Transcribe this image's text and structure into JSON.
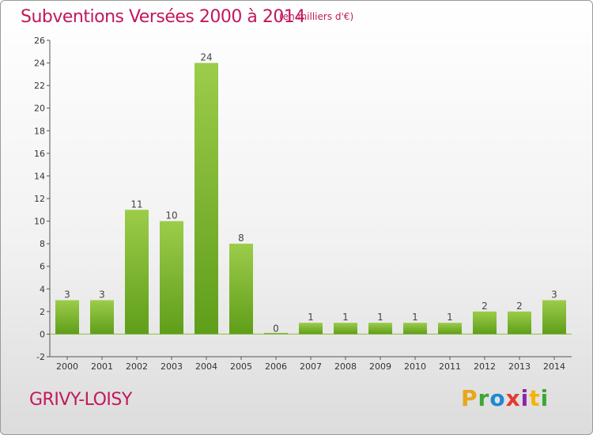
{
  "header": {
    "title": "Subventions Versées 2000 à 2014",
    "subtitle": "(en milliers d'€)"
  },
  "footer": {
    "commune": "GRIVY-LOISY",
    "logo_letters": [
      "P",
      "r",
      "o",
      "x",
      "i",
      "t",
      "i"
    ],
    "logo_colors": [
      "#e8a61b",
      "#3fa535",
      "#1e88d2",
      "#e53935",
      "#8e24aa",
      "#f4b400",
      "#3fa535"
    ]
  },
  "chart_data": {
    "type": "bar",
    "title": "Subventions Versées 2000 à 2014",
    "subtitle": "(en milliers d'€)",
    "categories": [
      "2000",
      "2001",
      "2002",
      "2003",
      "2004",
      "2005",
      "2006",
      "2007",
      "2008",
      "2009",
      "2010",
      "2011",
      "2012",
      "2013",
      "2014"
    ],
    "values": [
      3,
      3,
      11,
      10,
      24,
      8,
      0,
      1,
      1,
      1,
      1,
      1,
      2,
      2,
      3
    ],
    "ylim": [
      -2,
      26
    ],
    "yticks": [
      -2,
      0,
      2,
      4,
      6,
      8,
      10,
      12,
      14,
      16,
      18,
      20,
      22,
      24,
      26
    ],
    "grid": false,
    "bar_color_top": "#9ccc4a",
    "bar_color_bottom": "#5f9e1a",
    "axis_color": "#c2185b"
  }
}
